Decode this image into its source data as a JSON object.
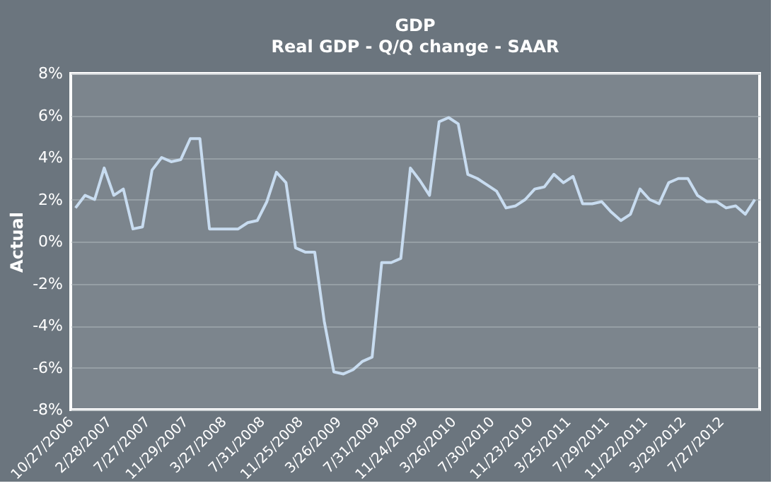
{
  "chart_data": {
    "type": "line",
    "title": "GDP",
    "subtitle": "Real GDP - Q/Q change - SAAR",
    "ylabel": "Actual",
    "categories": [
      "10/27/2006",
      null,
      null,
      null,
      "2/28/2007",
      null,
      null,
      null,
      "7/27/2007",
      null,
      null,
      null,
      "11/29/2007",
      null,
      null,
      null,
      "3/27/2008",
      null,
      null,
      null,
      "7/31/2008",
      null,
      null,
      null,
      "11/25/2008",
      null,
      null,
      null,
      "3/26/2009",
      null,
      null,
      null,
      "7/31/2009",
      null,
      null,
      null,
      "11/24/2009",
      null,
      null,
      null,
      "3/26/2010",
      null,
      null,
      null,
      "7/30/2010",
      null,
      null,
      null,
      "11/23/2010",
      null,
      null,
      null,
      "3/25/2011",
      null,
      null,
      null,
      "7/29/2011",
      null,
      null,
      null,
      "11/22/2011",
      null,
      null,
      null,
      "3/29/2012",
      null,
      null,
      null,
      "7/27/2012",
      null,
      null,
      null
    ],
    "series": [
      {
        "color": "#c8dcf0",
        "values": [
          1.6,
          2.2,
          2.0,
          3.5,
          2.2,
          2.5,
          0.6,
          0.7,
          3.4,
          4.0,
          3.8,
          3.9,
          4.9,
          4.9,
          0.6,
          0.6,
          0.6,
          0.6,
          0.9,
          1.0,
          1.9,
          3.3,
          2.8,
          -0.3,
          -0.5,
          -0.5,
          -3.8,
          -6.2,
          -6.3,
          -6.1,
          -5.7,
          -5.5,
          -1.0,
          -1.0,
          -0.8,
          3.5,
          2.9,
          2.2,
          5.7,
          5.9,
          5.6,
          3.2,
          3.0,
          2.7,
          2.4,
          1.6,
          1.7,
          2.0,
          2.5,
          2.6,
          3.2,
          2.8,
          3.1,
          1.8,
          1.8,
          1.9,
          1.4,
          1.0,
          1.3,
          2.5,
          2.0,
          1.8,
          2.8,
          3.0,
          3.0,
          2.2,
          1.9,
          1.9,
          1.6,
          1.7,
          1.3,
          2.0
        ]
      }
    ],
    "ylim": [
      -8,
      8
    ],
    "yticks": [
      {
        "value": -8,
        "label": "-8%"
      },
      {
        "value": -6,
        "label": "-6%"
      },
      {
        "value": -4,
        "label": "-4%"
      },
      {
        "value": -2,
        "label": "-2%"
      },
      {
        "value": 0,
        "label": "0%"
      },
      {
        "value": 2,
        "label": "2%"
      },
      {
        "value": 4,
        "label": "4%"
      },
      {
        "value": 6,
        "label": "6%"
      },
      {
        "value": 8,
        "label": "8%"
      }
    ],
    "grid": "y",
    "line_style": "solid",
    "marker": "none"
  }
}
